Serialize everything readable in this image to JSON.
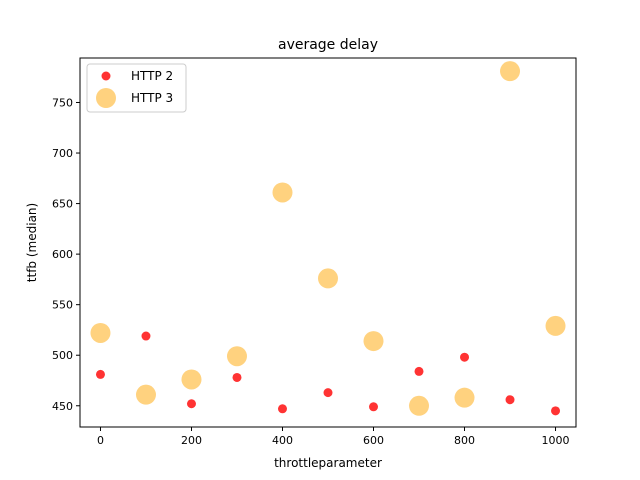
{
  "chart_data": {
    "type": "scatter",
    "title": "average delay",
    "xlabel": "throttleparameter",
    "ylabel": "ttfb (median)",
    "xlim": [
      -45,
      1045
    ],
    "ylim": [
      429,
      794
    ],
    "xticks": [
      0,
      200,
      400,
      600,
      800,
      1000
    ],
    "yticks": [
      450,
      500,
      550,
      600,
      650,
      700,
      750
    ],
    "grid": false,
    "legend_position": "top-left",
    "series": [
      {
        "name": "HTTP 2",
        "color": "#ff0000",
        "alpha": 0.8,
        "marker_size": "small",
        "x": [
          0,
          100,
          200,
          300,
          400,
          500,
          600,
          700,
          800,
          900,
          1000
        ],
        "y": [
          481,
          519,
          452,
          478,
          447,
          463,
          449,
          484,
          498,
          456,
          445
        ]
      },
      {
        "name": "HTTP 3",
        "color": "#ffa500",
        "alpha": 0.5,
        "marker_size": "large",
        "x": [
          0,
          100,
          200,
          300,
          400,
          500,
          600,
          700,
          800,
          900,
          1000
        ],
        "y": [
          522,
          461,
          476,
          499,
          661,
          576,
          514,
          450,
          458,
          781,
          529
        ]
      }
    ]
  }
}
